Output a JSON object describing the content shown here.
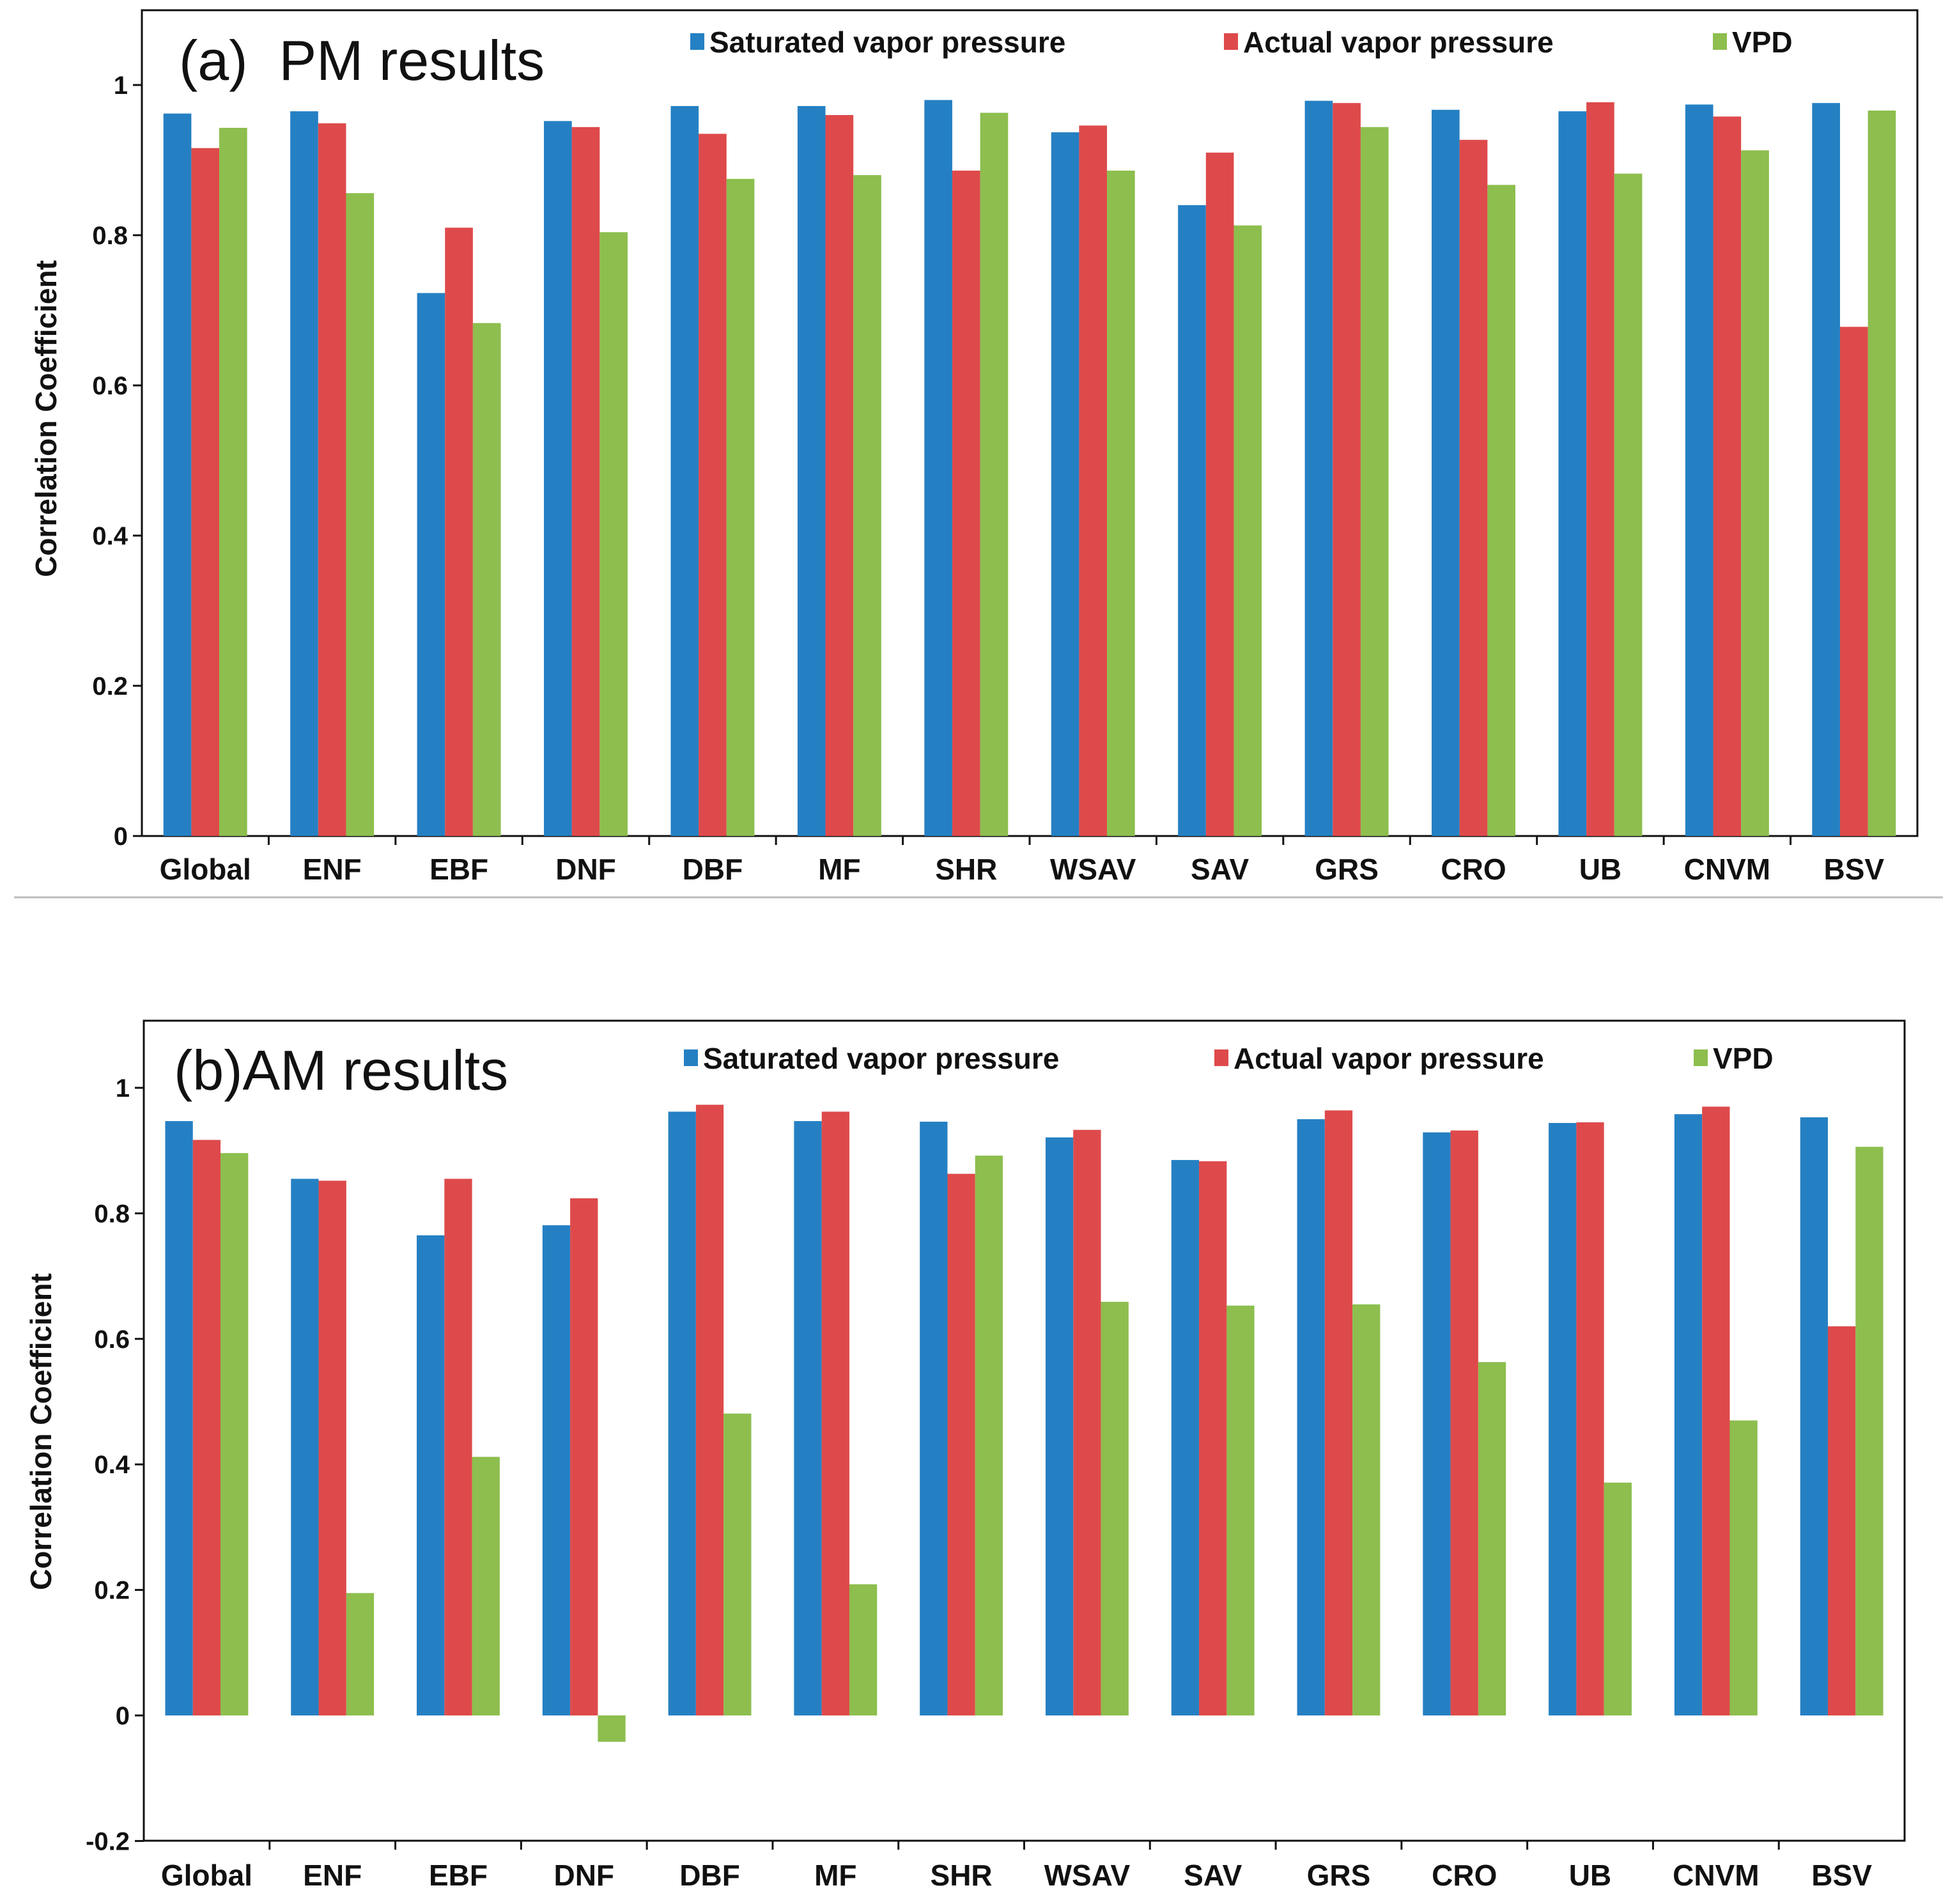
{
  "colors": {
    "saturated": "#2580C3",
    "actual": "#DE4A4B",
    "vpd": "#8DBE4E",
    "axis": "#111111",
    "separator": "#bbbbbb"
  },
  "chart_data": [
    {
      "type": "bar",
      "title": "(a)  PM results",
      "xlabel": "",
      "ylabel": "Correlation Coefficient",
      "ylim": [
        0,
        1.1
      ],
      "yticks": [
        0,
        0.2,
        0.4,
        0.6,
        0.8,
        1
      ],
      "ytick_labels": [
        "0",
        "0.2",
        "0.4",
        "0.6",
        "0.8",
        "1"
      ],
      "legend_position": "top",
      "categories": [
        "Global",
        "ENF",
        "EBF",
        "DNF",
        "DBF",
        "MF",
        "SHR",
        "WSAV",
        "SAV",
        "GRS",
        "CRO",
        "UB",
        "CNVM",
        "BSV"
      ],
      "series": [
        {
          "name": "Saturated vapor pressure",
          "color_key": "saturated",
          "values": [
            0.962,
            0.965,
            0.723,
            0.952,
            0.972,
            0.972,
            0.98,
            0.937,
            0.84,
            0.979,
            0.967,
            0.965,
            0.974,
            0.976
          ]
        },
        {
          "name": "Actual vapor pressure",
          "color_key": "actual",
          "values": [
            0.916,
            0.949,
            0.81,
            0.944,
            0.935,
            0.96,
            0.886,
            0.946,
            0.91,
            0.976,
            0.927,
            0.977,
            0.958,
            0.678
          ]
        },
        {
          "name": "VPD",
          "color_key": "vpd",
          "values": [
            0.943,
            0.856,
            0.683,
            0.804,
            0.875,
            0.88,
            0.963,
            0.886,
            0.813,
            0.944,
            0.867,
            0.882,
            0.913,
            0.966
          ]
        }
      ]
    },
    {
      "type": "bar",
      "title": "(b)AM results",
      "xlabel": "",
      "ylabel": "Correlation Coefficient",
      "ylim": [
        -0.2,
        1.1
      ],
      "yticks": [
        -0.2,
        0,
        0.2,
        0.4,
        0.6,
        0.8,
        1
      ],
      "ytick_labels": [
        "-0.2",
        "0",
        "0.2",
        "0.4",
        "0.6",
        "0.8",
        "1"
      ],
      "legend_position": "top",
      "categories": [
        "Global",
        "ENF",
        "EBF",
        "DNF",
        "DBF",
        "MF",
        "SHR",
        "WSAV",
        "SAV",
        "GRS",
        "CRO",
        "UB",
        "CNVM",
        "BSV"
      ],
      "series": [
        {
          "name": "Saturated vapor pressure",
          "color_key": "saturated",
          "values": [
            0.947,
            0.855,
            0.765,
            0.781,
            0.962,
            0.947,
            0.946,
            0.921,
            0.885,
            0.95,
            0.929,
            0.944,
            0.958,
            0.953
          ]
        },
        {
          "name": "Actual vapor pressure",
          "color_key": "actual",
          "values": [
            0.917,
            0.852,
            0.855,
            0.824,
            0.973,
            0.962,
            0.863,
            0.933,
            0.883,
            0.964,
            0.932,
            0.945,
            0.97,
            0.62
          ]
        },
        {
          "name": "VPD",
          "color_key": "vpd",
          "values": [
            0.896,
            0.195,
            0.412,
            -0.042,
            0.481,
            0.209,
            0.892,
            0.659,
            0.653,
            0.655,
            0.563,
            0.371,
            0.47,
            0.906
          ]
        }
      ]
    }
  ]
}
